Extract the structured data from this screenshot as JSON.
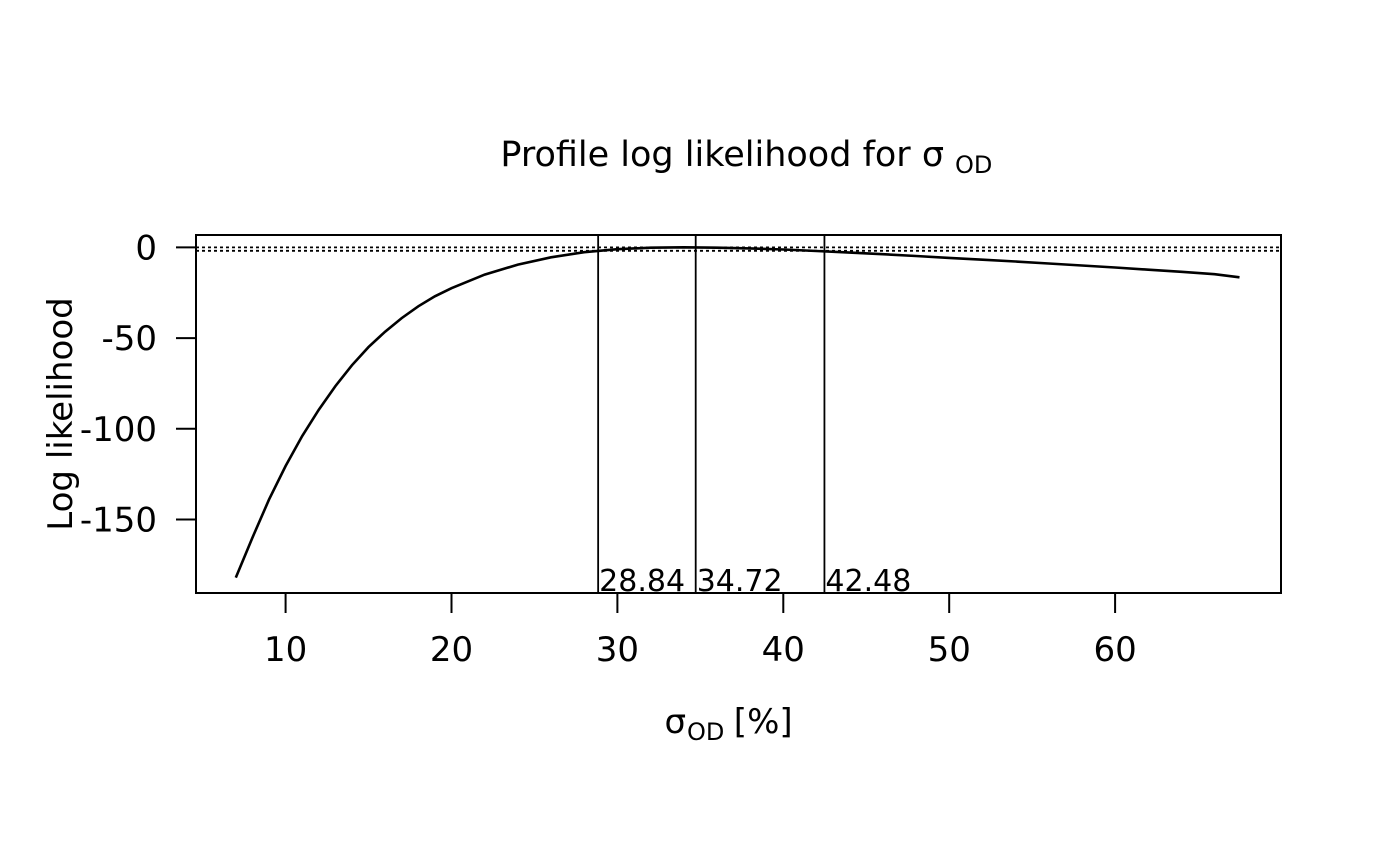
{
  "chart_data": {
    "type": "line",
    "title": "Profile log likelihood for σ",
    "title_subscript": "OD",
    "xlabel_symbol": "σ",
    "xlabel_subscript": "OD",
    "xlabel_suffix": " [%]",
    "ylabel": "Log likelihood",
    "xlim": [
      4.6,
      70.0
    ],
    "ylim": [
      -190.5,
      6.8
    ],
    "xticks": [
      10,
      20,
      30,
      40,
      50,
      60
    ],
    "yticks": [
      0,
      -50,
      -100,
      -150
    ],
    "grid": false,
    "series": [
      {
        "x": [
          7,
          8,
          9,
          10,
          11,
          12,
          13,
          14,
          15,
          16,
          17,
          18,
          19,
          20,
          22,
          24,
          26,
          28,
          30,
          32,
          34,
          36,
          38,
          40,
          42,
          44,
          46,
          48,
          50,
          52,
          54,
          56,
          58,
          60,
          62,
          64,
          66,
          67.5
        ],
        "y": [
          -182.0,
          -160.0,
          -139.0,
          -120.5,
          -104.0,
          -89.5,
          -76.5,
          -65.0,
          -55.0,
          -46.5,
          -39.0,
          -32.5,
          -27.0,
          -22.5,
          -15.0,
          -9.5,
          -5.5,
          -2.7,
          -1.0,
          -0.2,
          0.0,
          -0.2,
          -0.6,
          -1.2,
          -2.0,
          -2.9,
          -3.8,
          -4.8,
          -5.8,
          -6.8,
          -7.8,
          -8.9,
          -10.0,
          -11.1,
          -12.3,
          -13.5,
          -14.8,
          -16.5
        ]
      }
    ],
    "hlines": [
      0.0,
      -1.92
    ],
    "vlines": [
      {
        "x": 28.84,
        "label": "28.84"
      },
      {
        "x": 34.72,
        "label": "34.72"
      },
      {
        "x": 42.48,
        "label": "42.48"
      }
    ]
  }
}
